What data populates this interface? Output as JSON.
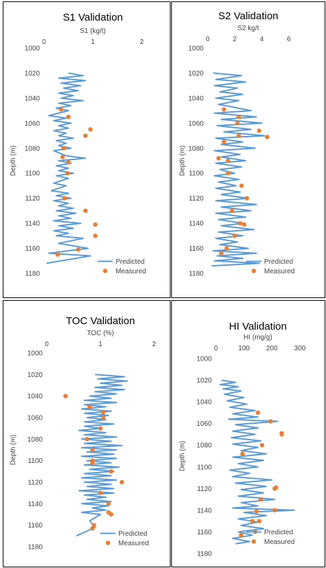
{
  "chart_data": [
    {
      "type": "line",
      "title": "S1 Validation",
      "xlabel": "S1 (kg/t)",
      "ylabel": "Depth (m)",
      "xlim": [
        0,
        2
      ],
      "xticks": [
        "0",
        "1",
        "2"
      ],
      "ylim": [
        1000,
        1180
      ],
      "yticks": [
        "1000",
        "1020",
        "1040",
        "1060",
        "1080",
        "1100",
        "1120",
        "1140",
        "1160",
        "1180"
      ],
      "y_inverted": true,
      "grid": false,
      "legend": "bottom-right",
      "series": [
        {
          "name": "Predicted",
          "kind": "line",
          "color": "#5b9bd5",
          "x": [
            0.5,
            0.8,
            0.3,
            0.85,
            0.35,
            0.75,
            0.4,
            0.7,
            0.3,
            0.6,
            0.35,
            0.8,
            0.3,
            0.55,
            0.25,
            0.5,
            0.1,
            0.45,
            0.2,
            0.55,
            0.3,
            0.5,
            0.2,
            0.45,
            0.3,
            0.6,
            0.25,
            0.45,
            0.3,
            0.55,
            0.2,
            0.45,
            0.85,
            0.3,
            0.55,
            0.25,
            0.5,
            0.3,
            0.6,
            0.25,
            0.5,
            0.2,
            0.45,
            0.15,
            0.5,
            0.25,
            0.55,
            0.2,
            0.5,
            0.3,
            0.6,
            0.25,
            0.65,
            0.3,
            0.55,
            0.2,
            0.75,
            0.3,
            0.6,
            0.2,
            0.5,
            0.25,
            0.8,
            0.3,
            0.9,
            0.1,
            0.95,
            0.05
          ],
          "y": [
            1020,
            1022,
            1024,
            1026,
            1028,
            1030,
            1032,
            1034,
            1036,
            1038,
            1040,
            1042,
            1044,
            1046,
            1048,
            1050,
            1054,
            1056,
            1058,
            1060,
            1062,
            1064,
            1066,
            1068,
            1070,
            1072,
            1074,
            1076,
            1078,
            1080,
            1082,
            1086,
            1088,
            1090,
            1092,
            1094,
            1096,
            1098,
            1100,
            1102,
            1104,
            1108,
            1110,
            1114,
            1116,
            1118,
            1120,
            1122,
            1124,
            1126,
            1128,
            1130,
            1132,
            1134,
            1136,
            1138,
            1140,
            1142,
            1144,
            1146,
            1148,
            1150,
            1152,
            1156,
            1160,
            1164,
            1166,
            1172
          ]
        },
        {
          "name": "Measured",
          "kind": "scatter",
          "color": "#ed7d31",
          "x": [
            0.35,
            0.5,
            0.95,
            0.85,
            0.4,
            0.38,
            0.5,
            0.48,
            0.42,
            0.85,
            1.05,
            1.05,
            0.7,
            0.28
          ],
          "y": [
            1049,
            1055,
            1065,
            1070,
            1080,
            1087,
            1091,
            1100,
            1120,
            1130,
            1141,
            1150,
            1161,
            1165
          ]
        }
      ]
    },
    {
      "type": "line",
      "title": "S2 Validation",
      "xlabel": "S2 kg/t",
      "ylabel": "Depth (m)",
      "xlim": [
        0,
        6
      ],
      "xticks": [
        "0",
        "2",
        "4",
        "6"
      ],
      "ylim": [
        1000,
        1180
      ],
      "yticks": [
        "1000",
        "1020",
        "1040",
        "1060",
        "1080",
        "1100",
        "1120",
        "1140",
        "1160",
        "1180"
      ],
      "y_inverted": true,
      "grid": false,
      "legend": "bottom-right",
      "series": [
        {
          "name": "Predicted",
          "kind": "line",
          "color": "#5b9bd5",
          "x": [
            0.4,
            2.5,
            0.6,
            2.8,
            0.5,
            2.2,
            0.9,
            2.6,
            0.6,
            2.3,
            0.8,
            1.8,
            3.2,
            0.5,
            3.6,
            1.0,
            4.0,
            0.7,
            3.2,
            1.2,
            4.2,
            0.6,
            2.6,
            1.0,
            3.5,
            0.5,
            2.4,
            1.0,
            2.8,
            0.6,
            2.5,
            0.9,
            2.0,
            0.5,
            2.3,
            0.8,
            2.1,
            0.6,
            2.4,
            1.0,
            3.0,
            0.6,
            3.6,
            1.0,
            3.2,
            0.6,
            2.8,
            0.8,
            2.6,
            1.0,
            3.4,
            0.8,
            2.6,
            0.6,
            2.2,
            0.9,
            3.0,
            0.4,
            3.6,
            0.7,
            2.6,
            0.5,
            3.8,
            0.3
          ],
          "y": [
            1020,
            1022,
            1025,
            1027,
            1030,
            1032,
            1035,
            1037,
            1040,
            1042,
            1045,
            1047,
            1050,
            1052,
            1055,
            1057,
            1060,
            1062,
            1065,
            1067,
            1070,
            1072,
            1075,
            1077,
            1080,
            1082,
            1085,
            1087,
            1090,
            1092,
            1095,
            1097,
            1100,
            1102,
            1105,
            1107,
            1110,
            1112,
            1115,
            1117,
            1120,
            1122,
            1125,
            1127,
            1130,
            1132,
            1135,
            1137,
            1140,
            1142,
            1145,
            1147,
            1150,
            1152,
            1155,
            1157,
            1160,
            1162,
            1164,
            1166,
            1168,
            1170,
            1172,
            1174
          ]
        },
        {
          "name": "Measured",
          "kind": "scatter",
          "color": "#ed7d31",
          "x": [
            1.2,
            2.3,
            2.2,
            3.8,
            2.3,
            4.4,
            1.2,
            0.8,
            1.5,
            1.5,
            2.5,
            2.9,
            1.8,
            2.4,
            2.7,
            2.0,
            1.4,
            1.0
          ],
          "y": [
            1049,
            1055,
            1060,
            1066,
            1070,
            1071,
            1075,
            1088,
            1090,
            1100,
            1110,
            1120,
            1130,
            1140,
            1141,
            1150,
            1160,
            1164
          ]
        }
      ]
    },
    {
      "type": "line",
      "title": "TOC Validation",
      "xlabel": "TOC (%)",
      "ylabel": "Depth (m)",
      "xlim": [
        0,
        2
      ],
      "xticks": [
        "0",
        "1",
        "2"
      ],
      "ylim": [
        1000,
        1180
      ],
      "yticks": [
        "1000",
        "1020",
        "1040",
        "1060",
        "1080",
        "1100",
        "1120",
        "1140",
        "1160",
        "1180"
      ],
      "y_inverted": true,
      "grid": false,
      "legend": "bottom-right",
      "series": [
        {
          "name": "Predicted",
          "kind": "line",
          "color": "#5b9bd5",
          "x": [
            0.9,
            1.45,
            0.95,
            1.5,
            1.0,
            1.4,
            0.9,
            1.45,
            0.9,
            1.3,
            0.8,
            1.2,
            0.7,
            1.3,
            0.7,
            1.1,
            0.65,
            1.2,
            0.7,
            1.15,
            0.75,
            1.1,
            0.7,
            1.25,
            0.7,
            1.0,
            0.6,
            1.1,
            0.7,
            1.3,
            0.65,
            1.2,
            0.7,
            1.4,
            0.65,
            1.3,
            0.75,
            1.25,
            0.65,
            1.3,
            0.75,
            1.2,
            0.7,
            1.35,
            0.8,
            1.25,
            0.7,
            1.2,
            0.65,
            1.3,
            0.7,
            1.2,
            0.75,
            1.25,
            0.6,
            1.25,
            0.7,
            1.1,
            0.75,
            1.2,
            0.65,
            1.15,
            0.85,
            1.1,
            0.65,
            1.0,
            0.8,
            0.9,
            0.55
          ],
          "y": [
            1020,
            1022,
            1024,
            1026,
            1028,
            1030,
            1032,
            1034,
            1036,
            1038,
            1040,
            1042,
            1044,
            1046,
            1048,
            1050,
            1052,
            1054,
            1056,
            1058,
            1060,
            1062,
            1064,
            1066,
            1068,
            1070,
            1072,
            1074,
            1076,
            1078,
            1080,
            1082,
            1084,
            1086,
            1088,
            1090,
            1092,
            1094,
            1096,
            1098,
            1100,
            1102,
            1104,
            1106,
            1108,
            1110,
            1112,
            1114,
            1116,
            1118,
            1120,
            1122,
            1124,
            1126,
            1128,
            1130,
            1132,
            1134,
            1136,
            1138,
            1140,
            1142,
            1144,
            1146,
            1148,
            1150,
            1156,
            1162,
            1170
          ]
        },
        {
          "name": "Measured",
          "kind": "scatter",
          "color": "#ed7d31",
          "x": [
            0.35,
            0.8,
            1.05,
            1.05,
            1.0,
            0.75,
            0.85,
            0.85,
            0.85,
            1.2,
            1.4,
            1.0,
            1.15,
            1.15,
            1.2,
            0.88,
            0.85
          ],
          "y": [
            1040,
            1050,
            1055,
            1060,
            1070,
            1080,
            1090,
            1100,
            1102,
            1110,
            1120,
            1130,
            1140,
            1148,
            1150,
            1160,
            1163
          ]
        }
      ]
    },
    {
      "type": "line",
      "title": "HI Validation",
      "xlabel": "HI (mg/g)",
      "ylabel": "Depth (m)",
      "xlim": [
        0,
        300
      ],
      "xticks": [
        "0",
        "100",
        "200",
        "300"
      ],
      "ylim": [
        1000,
        1180
      ],
      "yticks": [
        "1000",
        "1020",
        "1040",
        "1060",
        "1080",
        "1100",
        "1120",
        "1140",
        "1160",
        "1180"
      ],
      "y_inverted": true,
      "grid": false,
      "legend": "bottom-right",
      "series": [
        {
          "name": "Predicted",
          "kind": "line",
          "color": "#5b9bd5",
          "x": [
            20,
            70,
            15,
            80,
            25,
            90,
            30,
            100,
            40,
            110,
            50,
            140,
            60,
            150,
            45,
            220,
            70,
            150,
            60,
            140,
            55,
            160,
            60,
            150,
            90,
            180,
            60,
            170,
            80,
            150,
            50,
            120,
            60,
            200,
            70,
            180,
            90,
            170,
            80,
            210,
            90,
            150,
            60,
            280,
            100,
            180,
            80,
            150,
            90,
            170,
            80,
            130,
            60,
            120,
            70
          ],
          "y": [
            1020,
            1022,
            1024,
            1026,
            1028,
            1030,
            1033,
            1036,
            1039,
            1042,
            1045,
            1048,
            1051,
            1054,
            1056,
            1058,
            1061,
            1064,
            1067,
            1070,
            1073,
            1076,
            1079,
            1082,
            1085,
            1088,
            1091,
            1094,
            1097,
            1100,
            1103,
            1106,
            1109,
            1112,
            1115,
            1118,
            1121,
            1124,
            1127,
            1130,
            1133,
            1136,
            1138,
            1140,
            1142,
            1145,
            1148,
            1151,
            1154,
            1157,
            1160,
            1163,
            1166,
            1169,
            1171
          ]
        },
        {
          "name": "Measured",
          "kind": "scatter",
          "color": "#ed7d31",
          "x": [
            150,
            195,
            235,
            235,
            165,
            95,
            215,
            210,
            160,
            145,
            210,
            130,
            155,
            140,
            90
          ],
          "y": [
            1050,
            1058,
            1069,
            1070,
            1080,
            1088,
            1119,
            1120,
            1130,
            1141,
            1140,
            1150,
            1150,
            1160,
            1163
          ]
        }
      ]
    }
  ]
}
